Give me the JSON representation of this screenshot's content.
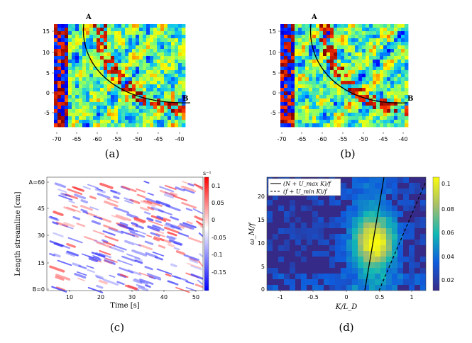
{
  "panels": {
    "a": {
      "caption": "(a)",
      "point_a": "A",
      "point_b": "B",
      "x_ticks": [
        "-70",
        "-65",
        "-60",
        "-55",
        "-50",
        "-45",
        "-40"
      ],
      "y_ticks": [
        "15",
        "10",
        "5",
        "0",
        "-5"
      ]
    },
    "b": {
      "caption": "(b)",
      "point_a": "A",
      "point_b": "B",
      "x_ticks": [
        "-70",
        "-65",
        "-60",
        "-55",
        "-50",
        "-45",
        "-40"
      ],
      "y_ticks": [
        "15",
        "10",
        "5",
        "0",
        "-5"
      ]
    },
    "c": {
      "caption": "(c)",
      "xlabel": "Time [s]",
      "ylabel": "Length streamline [cm]",
      "x_ticks": [
        "10",
        "20",
        "30",
        "40",
        "50"
      ],
      "y_ticks": [
        "A=60",
        "45",
        "30",
        "15",
        "B=0"
      ],
      "colorbar_unit": "s⁻¹",
      "colorbar_ticks": [
        "0.1",
        "0.05",
        "0",
        "-0.05",
        "-0.1",
        "-0.15"
      ]
    },
    "d": {
      "caption": "(d)",
      "xlabel": "K/L_D",
      "ylabel": "ω_M/f",
      "x_ticks": [
        "-1",
        "-0.5",
        "0",
        "0.5",
        "1"
      ],
      "y_ticks": [
        "20",
        "15",
        "10",
        "5",
        "0"
      ],
      "legend": [
        "(N + U_max K)/f",
        "(f + U_min K)/f"
      ],
      "colorbar_ticks": [
        "0.1",
        "0.08",
        "0.06",
        "0.04",
        "0.02"
      ]
    }
  },
  "chart_data": [
    {
      "type": "heatmap",
      "panel": "a",
      "xlim": [
        -70,
        -38
      ],
      "ylim": [
        -8,
        17
      ],
      "annotations": [
        "A",
        "B"
      ]
    },
    {
      "type": "heatmap",
      "panel": "b",
      "xlim": [
        -70,
        -38
      ],
      "ylim": [
        -8,
        17
      ],
      "annotations": [
        "A",
        "B"
      ]
    },
    {
      "type": "heatmap",
      "panel": "c",
      "xlabel": "Time [s]",
      "ylabel": "Length streamline [cm]",
      "xlim": [
        2,
        51
      ],
      "ylim": [
        0,
        62
      ],
      "clim": [
        -0.15,
        0.12
      ]
    },
    {
      "type": "heatmap",
      "panel": "d",
      "xlabel": "K/L_D",
      "ylabel": "ω_M/f",
      "xlim": [
        -1.3,
        1.25
      ],
      "ylim": [
        0,
        24
      ],
      "clim": [
        0,
        0.105
      ],
      "series": [
        {
          "name": "(N + U_max K)/f",
          "style": "solid",
          "x": [
            0.0,
            0.45
          ],
          "y": [
            0,
            24
          ]
        },
        {
          "name": "(f + U_min K)/f",
          "style": "dashed",
          "x": [
            0.2,
            1.25
          ],
          "y": [
            0,
            20
          ]
        }
      ]
    }
  ]
}
